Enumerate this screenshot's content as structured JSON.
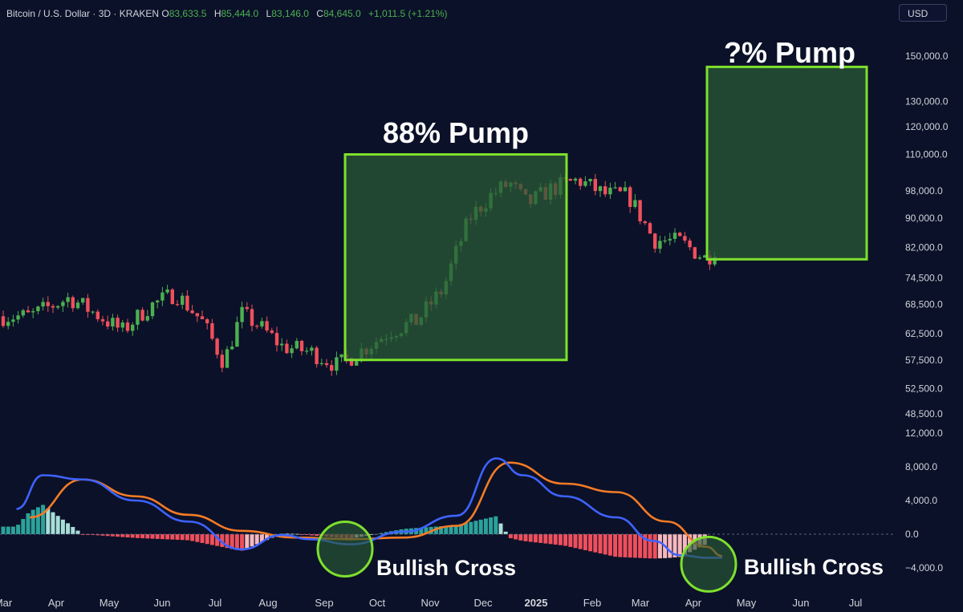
{
  "header": {
    "symbol": "Bitcoin / U.S. Dollar · 3D · KRAKEN",
    "open_key": "O",
    "open": "83,633.5",
    "high_key": "H",
    "high": "85,444.0",
    "low_key": "L",
    "low": "83,146.0",
    "close_key": "C",
    "close": "84,645.0",
    "change": "+1,011.5 (+1.21%)"
  },
  "currency_button": "USD",
  "colors": {
    "background": "#0b1128",
    "up": "#4caf50",
    "down": "#ef4f5c",
    "macd": "#3e63ff",
    "signal": "#f57b26",
    "box_border": "#7ee02d",
    "box_fill": "#2a5a35"
  },
  "chart_data": [
    {
      "type": "candlestick",
      "x_axis": {
        "ticks": [
          "Mar",
          "Apr",
          "May",
          "Jun",
          "Jul",
          "Aug",
          "Sep",
          "Oct",
          "Nov",
          "Dec",
          "2025",
          "Feb",
          "Mar",
          "Apr",
          "May",
          "Jun",
          "Jul"
        ]
      },
      "y_axis": {
        "scale": "log",
        "ticks": [
          "150,000.0",
          "130,000.0",
          "120,000.0",
          "110,000.0",
          "98,000.0",
          "90,000.0",
          "82,000.0",
          "74,500.0",
          "68,500.0",
          "62,500.0",
          "57,500.0",
          "52,500.0",
          "48,500.0"
        ]
      },
      "close_path": [
        [
          "Mar",
          66000
        ],
        [
          "Apr",
          70000
        ],
        [
          "Apr",
          66500
        ],
        [
          "May",
          63000
        ],
        [
          "May",
          68000
        ],
        [
          "Jun",
          71000
        ],
        [
          "Jun",
          65000
        ],
        [
          "Jul",
          57000
        ],
        [
          "Jul",
          66500
        ],
        [
          "Jul",
          64000
        ],
        [
          "Aug",
          60000
        ],
        [
          "Aug",
          59000
        ],
        [
          "Sep",
          56500
        ],
        [
          "Sep",
          59500
        ],
        [
          "Oct",
          63000
        ],
        [
          "Oct",
          65000
        ],
        [
          "Nov",
          72000
        ],
        [
          "Nov",
          90000
        ],
        [
          "Dec",
          97000
        ],
        [
          "Dec",
          100500
        ],
        [
          "Dec",
          94000
        ],
        [
          "2025",
          98500
        ],
        [
          "2025",
          101500
        ],
        [
          "Feb",
          97000
        ],
        [
          "Feb",
          96500
        ],
        [
          "Mar",
          84000
        ],
        [
          "Mar",
          83500
        ],
        [
          "Apr",
          79000
        ],
        [
          "Apr",
          84600
        ]
      ],
      "annotations": [
        {
          "label": "88% Pump",
          "from": {
            "x": "Sep",
            "price": 57500
          },
          "to": {
            "x": "2025",
            "price": 110000
          }
        },
        {
          "label": "?% Pump",
          "from": {
            "x": "Apr",
            "price": 79000
          },
          "to": {
            "x": "Jul",
            "price": 145000
          }
        }
      ]
    },
    {
      "type": "macd",
      "y_axis": {
        "ticks": [
          "12,000.0",
          "8,000.0",
          "4,000.0",
          "0.0",
          "−4,000.0"
        ]
      },
      "zero_line": 0,
      "macd_path": [
        [
          "Mar",
          3000
        ],
        [
          "Mar",
          7000
        ],
        [
          "Apr",
          6500
        ],
        [
          "May",
          4000
        ],
        [
          "Jun",
          1500
        ],
        [
          "Jul",
          -1800
        ],
        [
          "Aug",
          -100
        ],
        [
          "Aug",
          -600
        ],
        [
          "Sep",
          -1200
        ],
        [
          "Oct",
          300
        ],
        [
          "Nov",
          2200
        ],
        [
          "Dec",
          9000
        ],
        [
          "Dec",
          7000
        ],
        [
          "2025",
          4500
        ],
        [
          "Feb",
          2000
        ],
        [
          "Mar",
          -800
        ],
        [
          "Mar",
          -2500
        ],
        [
          "Apr",
          -2800
        ],
        [
          "Apr",
          -2800
        ]
      ],
      "signal_path": [
        [
          "Mar",
          2000
        ],
        [
          "Apr",
          6500
        ],
        [
          "May",
          4500
        ],
        [
          "Jun",
          2300
        ],
        [
          "Jul",
          400
        ],
        [
          "Aug",
          -400
        ],
        [
          "Sep",
          -600
        ],
        [
          "Oct",
          -400
        ],
        [
          "Nov",
          1000
        ],
        [
          "Dec",
          8500
        ],
        [
          "2025",
          6000
        ],
        [
          "Feb",
          5000
        ],
        [
          "Mar",
          1500
        ],
        [
          "Apr",
          -1500
        ],
        [
          "Apr",
          -2600
        ]
      ],
      "annotations": [
        {
          "label": "Bullish Cross",
          "at": {
            "x": "Sep",
            "value": -1000
          }
        },
        {
          "label": "Bullish Cross",
          "at": {
            "x": "Apr",
            "value": -2800
          }
        }
      ]
    }
  ]
}
